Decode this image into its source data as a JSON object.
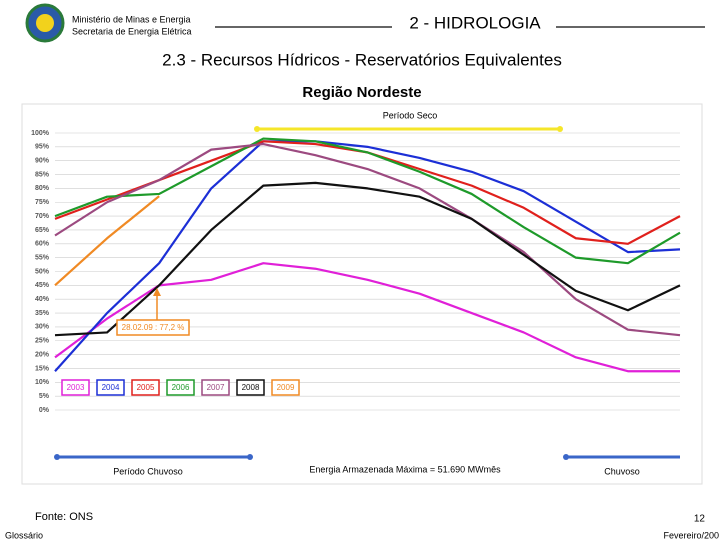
{
  "slide": {
    "ministry": "Ministério de Minas e Energia",
    "secretariat": "Secretaria de Energia Elétrica",
    "section": "2 - HIDROLOGIA",
    "heading": "2.3 - Recursos Hídricos - Reservatórios Equivalentes",
    "source": "Fonte: ONS",
    "page": "12",
    "glossary": "Glossário",
    "date": "Fevereiro/200"
  },
  "chart_data": {
    "type": "line",
    "title": "Região Nordeste",
    "x": [
      0,
      1,
      2,
      3,
      4,
      5,
      6,
      7,
      8,
      9,
      10,
      11,
      12
    ],
    "xlim": [
      0,
      12
    ],
    "ylim": [
      0,
      100
    ],
    "yticks": [
      {
        "value": 0,
        "label": "0%"
      },
      {
        "value": 5,
        "label": "5%"
      },
      {
        "value": 10,
        "label": "10%"
      },
      {
        "value": 15,
        "label": "15%"
      },
      {
        "value": 20,
        "label": "20%"
      },
      {
        "value": 25,
        "label": "25%"
      },
      {
        "value": 30,
        "label": "30%"
      },
      {
        "value": 35,
        "label": "35%"
      },
      {
        "value": 40,
        "label": "40%"
      },
      {
        "value": 45,
        "label": "45%"
      },
      {
        "value": 50,
        "label": "50%"
      },
      {
        "value": 55,
        "label": "55%"
      },
      {
        "value": 60,
        "label": "60%"
      },
      {
        "value": 65,
        "label": "65%"
      },
      {
        "value": 70,
        "label": "70%"
      },
      {
        "value": 75,
        "label": "75%"
      },
      {
        "value": 80,
        "label": "80%"
      },
      {
        "value": 85,
        "label": "85%"
      },
      {
        "value": 90,
        "label": "90%"
      },
      {
        "value": 95,
        "label": "95%"
      },
      {
        "value": 100,
        "label": "100%"
      }
    ],
    "grid": true,
    "series": [
      {
        "name": "2003",
        "color": "#e020d8",
        "values": [
          19,
          33,
          45,
          47,
          53,
          51,
          47,
          42,
          35,
          28,
          19,
          14,
          14
        ]
      },
      {
        "name": "2004",
        "color": "#1c2fd6",
        "values": [
          14,
          35,
          53,
          80,
          97,
          97,
          95,
          91,
          86,
          79,
          68,
          57,
          58
        ]
      },
      {
        "name": "2005",
        "color": "#e0201c",
        "values": [
          69,
          76,
          83,
          90,
          97,
          96,
          93,
          87,
          81,
          73,
          62,
          60,
          70
        ]
      },
      {
        "name": "2006",
        "color": "#1e9a2a",
        "values": [
          70,
          77,
          78,
          88,
          98,
          97,
          93,
          86,
          78,
          66,
          55,
          53,
          64
        ]
      },
      {
        "name": "2007",
        "color": "#9c4a80",
        "values": [
          63,
          75,
          83,
          94,
          96,
          92,
          87,
          80,
          69,
          57,
          40,
          29,
          27
        ]
      },
      {
        "name": "2008",
        "color": "#111111",
        "values": [
          27,
          28,
          45,
          65,
          81,
          82,
          80,
          77,
          69,
          56,
          43,
          36,
          45
        ]
      },
      {
        "name": "2009",
        "color": "#f08a24",
        "values": [
          45,
          62,
          77.2,
          null,
          null,
          null,
          null,
          null,
          null,
          null,
          null,
          null,
          null
        ]
      }
    ],
    "callout": "28.02.09 : 77,2 %",
    "annotations": [
      "Período Seco",
      "Período Chuvoso",
      "Chuvoso",
      "Energia Armazenada Máxima = 51.690 MWmês"
    ]
  }
}
